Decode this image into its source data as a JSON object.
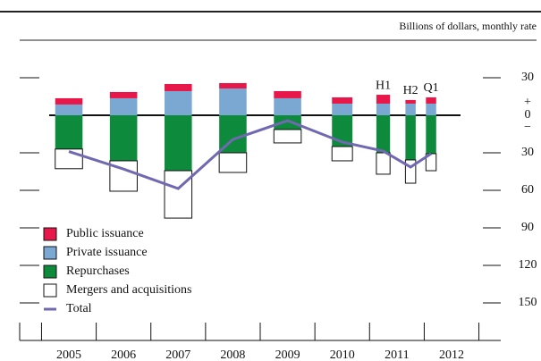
{
  "chart_data": {
    "type": "bar",
    "note": "Billions of dollars, monthly rate",
    "x": [
      2005.5,
      2006.5,
      2007.5,
      2008.5,
      2009.5,
      2010.5,
      2011.25,
      2011.75,
      2012.125
    ],
    "bar_labels": [
      null,
      null,
      null,
      null,
      null,
      null,
      "H1",
      "H2",
      "Q1"
    ],
    "series": [
      {
        "name": "Public issuance",
        "color": "#e8174a",
        "values": [
          5,
          5,
          5.7,
          4.3,
          5.7,
          5,
          7.1,
          2.9,
          5
        ]
      },
      {
        "name": "Private issuance",
        "color": "#7ba7d3",
        "values": [
          8.6,
          13.6,
          19.3,
          21.4,
          13.6,
          9.3,
          9.3,
          9.3,
          9.3
        ]
      },
      {
        "name": "Repurchases",
        "color": "#0d8a3b",
        "values": [
          -27,
          -36.4,
          -44.3,
          -30,
          -11.4,
          -25,
          -30,
          -35.7,
          -30.7
        ]
      },
      {
        "name": "Mergers and acquisitions",
        "color": "#ffffff",
        "values": [
          -15.7,
          -24.3,
          -37.9,
          -15.7,
          -10.7,
          -11.4,
          -17.1,
          -18.6,
          -13.6
        ]
      },
      {
        "name": "Total",
        "color": "#7068b0",
        "kind": "line",
        "values": [
          -29,
          -43,
          -58.6,
          -19.3,
          -4.3,
          -21.4,
          -28.6,
          -41.4,
          -30.7
        ]
      }
    ],
    "xlim": [
      2004.6,
      2013.4
    ],
    "xticks": [
      2005,
      2006,
      2007,
      2008,
      2009,
      2010,
      2011,
      2012,
      2013
    ],
    "year_labels": [
      2005,
      2006,
      2007,
      2008,
      2009,
      2010,
      2011,
      2012
    ],
    "ylim": [
      -180,
      60
    ],
    "yticks": [
      30,
      0,
      {
        "value": -30,
        "label": "30"
      },
      {
        "value": -60,
        "label": "60"
      },
      {
        "value": -90,
        "label": "90"
      },
      {
        "value": -120,
        "label": "120"
      },
      {
        "value": -150,
        "label": "150"
      }
    ],
    "sign_labels": [
      "+",
      "−"
    ]
  }
}
